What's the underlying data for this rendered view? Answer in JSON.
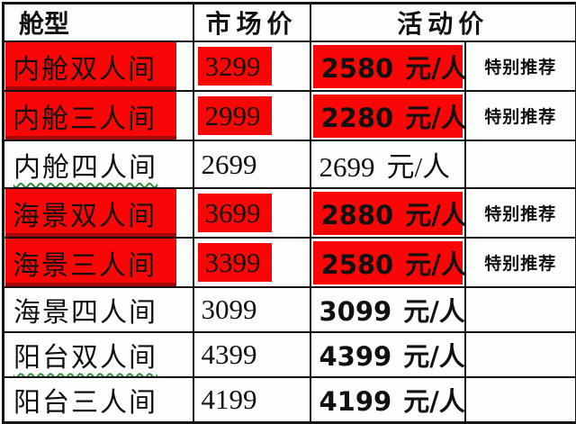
{
  "table": {
    "headers": {
      "cabin_type": "舱型",
      "market_price": "市场价",
      "activity_price": "活动价"
    },
    "unit_label": "元/人",
    "tag_label": "特别推荐",
    "rows": [
      {
        "cabin": "内舱双人间",
        "market": "3299",
        "activity": "2580",
        "unit": "元/人",
        "tag": "特别推荐",
        "highlighted": true
      },
      {
        "cabin": "内舱三人间",
        "market": "2999",
        "activity": "2280",
        "unit": "元/人",
        "tag": "特别推荐",
        "highlighted": true
      },
      {
        "cabin": "内舱四人间",
        "market": "2699",
        "activity": "2699",
        "unit": "元/人",
        "tag": "",
        "highlighted": false
      },
      {
        "cabin": "海景双人间",
        "market": "3699",
        "activity": "2880",
        "unit": "元/人",
        "tag": "特别推荐",
        "highlighted": true
      },
      {
        "cabin": "海景三人间",
        "market": "3399",
        "activity": "2580",
        "unit": "元/人",
        "tag": "特别推荐",
        "highlighted": true
      },
      {
        "cabin": "海景四人间",
        "market": "3099",
        "activity": "3099",
        "unit": "元/人",
        "tag": "",
        "highlighted": false
      },
      {
        "cabin": "阳台双人间",
        "market": "4399",
        "activity": "4399",
        "unit": "元/人",
        "tag": "",
        "highlighted": false
      },
      {
        "cabin": "阳台三人间",
        "market": "4199",
        "activity": "4199",
        "unit": "元/人",
        "tag": "",
        "highlighted": false
      }
    ],
    "colors": {
      "highlight_red": "#fa0606",
      "spellcheck_green": "#2f8f3a",
      "border_black": "#141414",
      "text_black": "#111111"
    }
  }
}
